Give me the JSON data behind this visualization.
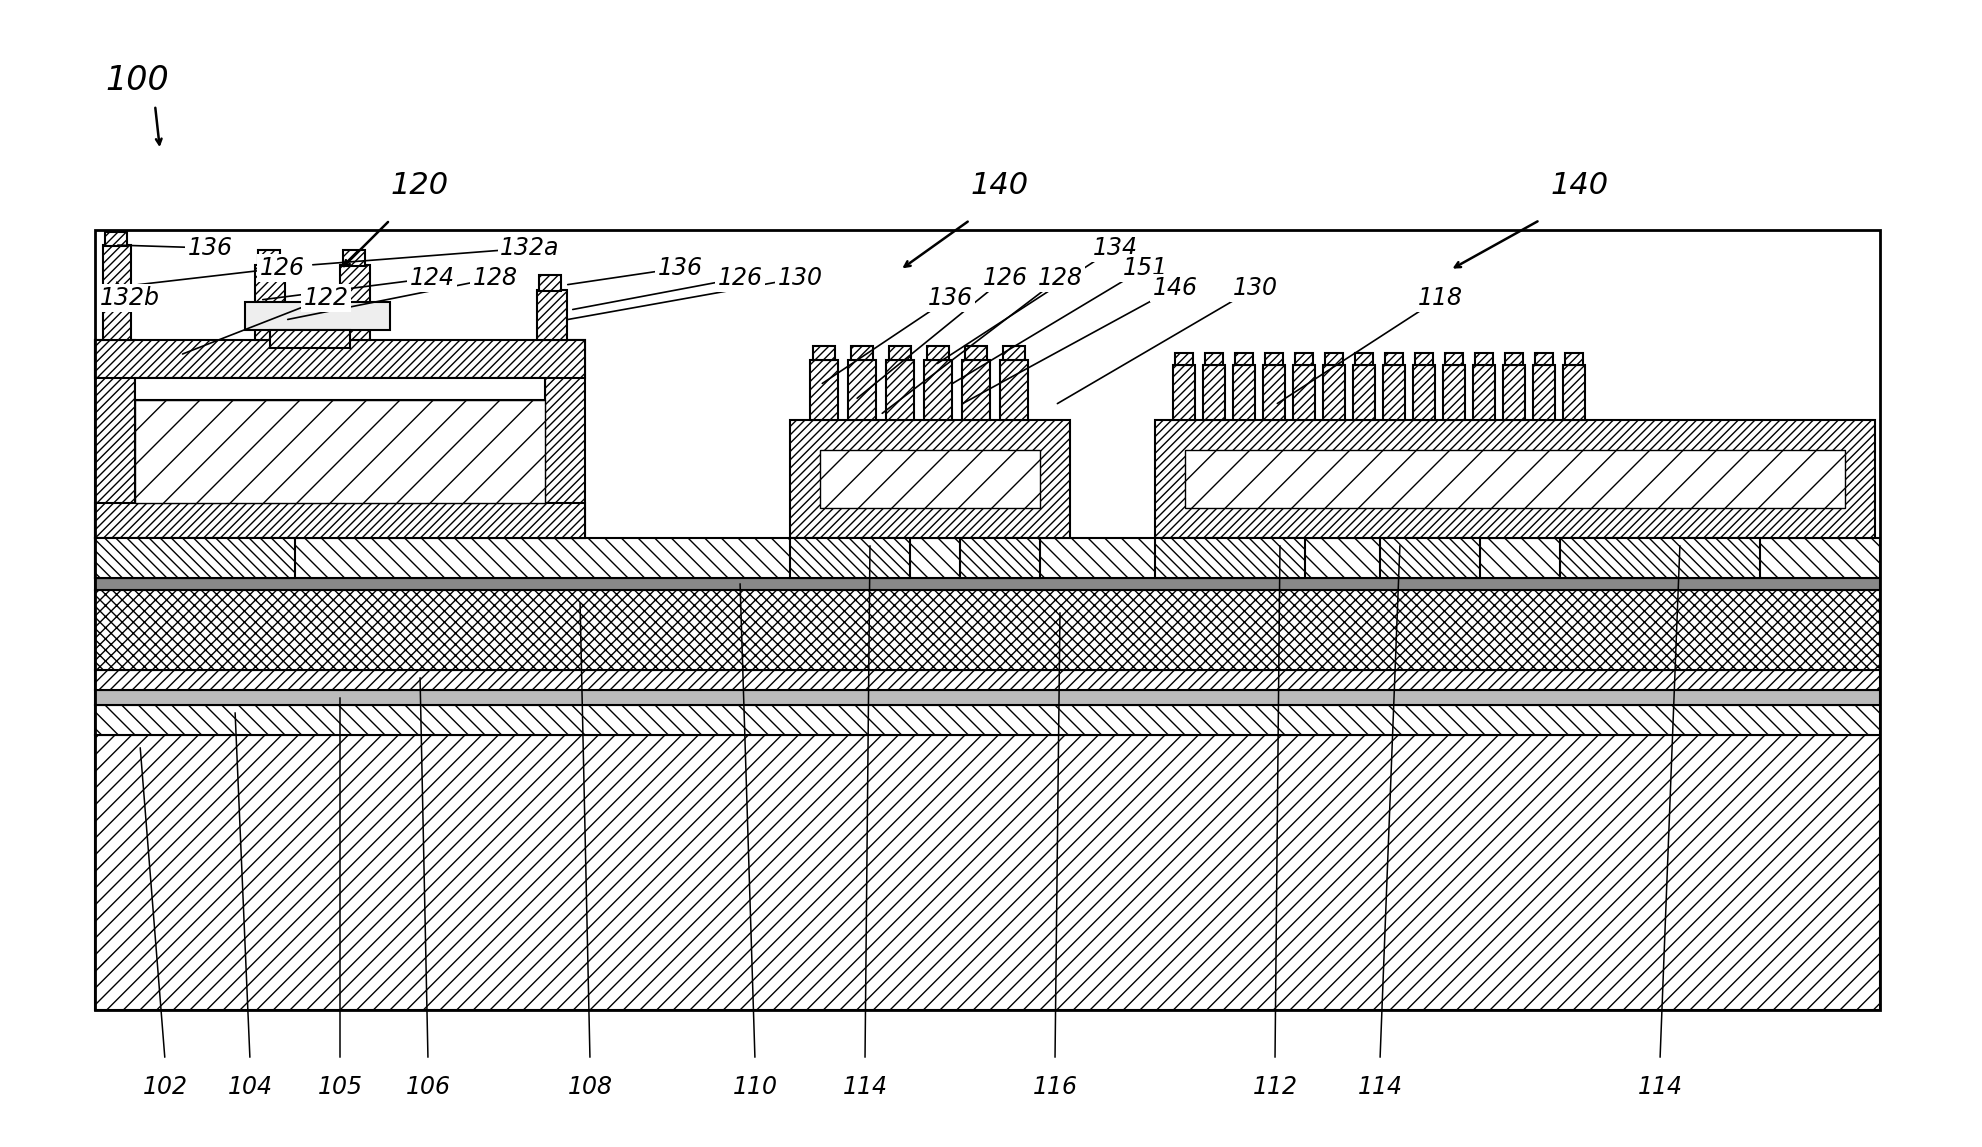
{
  "fig_width": 19.83,
  "fig_height": 11.47,
  "bg_color": "#ffffff"
}
